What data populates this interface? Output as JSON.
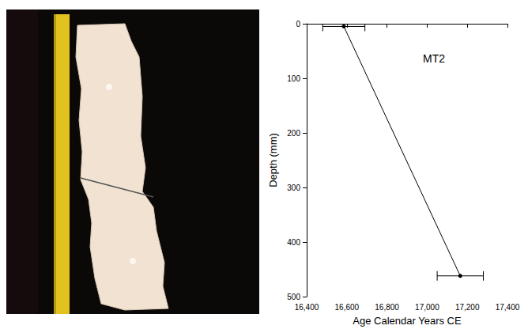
{
  "chart_data": {
    "type": "line",
    "title": "MT2",
    "x_label": "Age Calendar Years CE",
    "y_label": "Depth (mm)",
    "x": [
      16585,
      17165
    ],
    "values": [
      5,
      462
    ],
    "x_error": [
      105,
      115
    ],
    "color": "#000000",
    "marker": "circle",
    "xlim": [
      16400,
      17400
    ],
    "xticks": [
      16400,
      16600,
      16800,
      17000,
      17200,
      17400
    ],
    "ylim": [
      500,
      0
    ],
    "yticks": [
      0,
      100,
      200,
      300,
      400,
      500
    ],
    "grid": false
  }
}
